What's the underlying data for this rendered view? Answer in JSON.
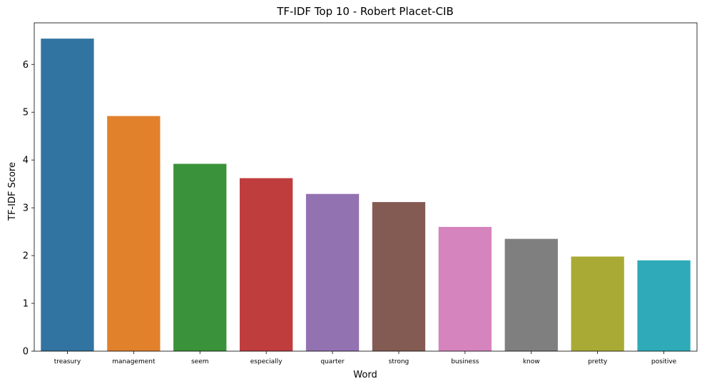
{
  "chart_data": {
    "type": "bar",
    "title": "TF-IDF Top 10 - Robert Placet-CIB",
    "xlabel": "Word",
    "ylabel": "TF-IDF Score",
    "categories": [
      "treasury",
      "management",
      "seem",
      "especially",
      "quarter",
      "strong",
      "business",
      "know",
      "pretty",
      "positive"
    ],
    "values": [
      6.54,
      4.92,
      3.92,
      3.62,
      3.29,
      3.12,
      2.6,
      2.35,
      1.98,
      1.9
    ],
    "ylim": [
      0,
      6.87
    ],
    "yticks": [
      0,
      1,
      2,
      3,
      4,
      5,
      6
    ],
    "grid": false,
    "legend": "none",
    "colors": [
      "#3274a1",
      "#e1812c",
      "#3a923a",
      "#c03d3e",
      "#9372b2",
      "#845b53",
      "#d684bd",
      "#7f7f7f",
      "#a9aa35",
      "#2eaab8"
    ]
  }
}
